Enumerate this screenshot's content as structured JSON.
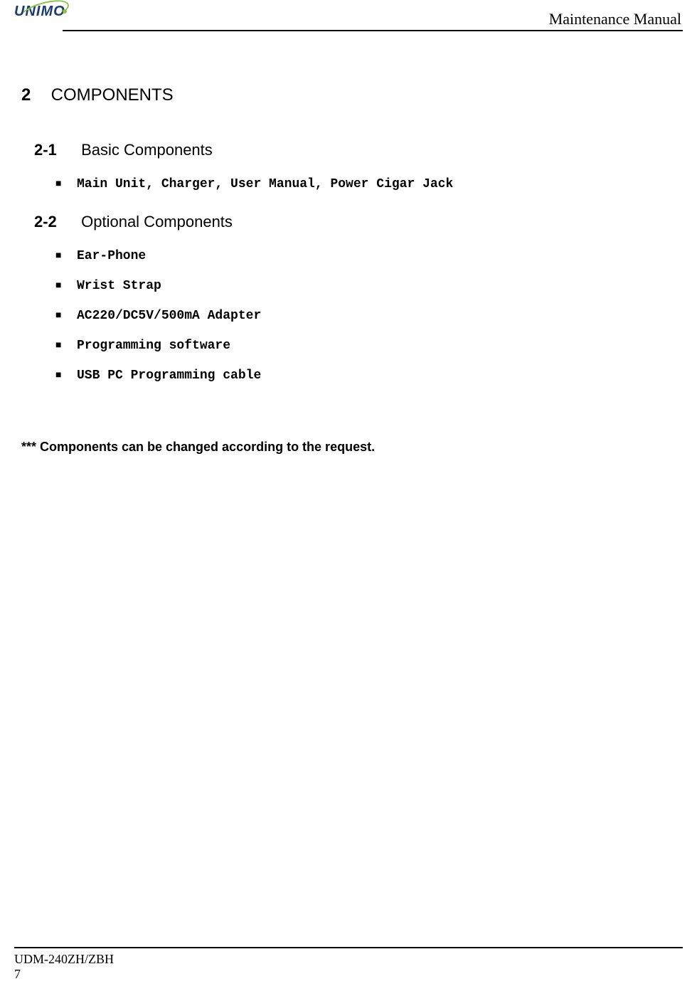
{
  "header": {
    "logo_text": "UNIMO",
    "title": "Maintenance Manual"
  },
  "content": {
    "section": {
      "number": "2",
      "title": "COMPONENTS"
    },
    "subsection1": {
      "number": "2-1",
      "title": "Basic Components",
      "items": [
        "Main Unit, Charger, User Manual, Power Cigar Jack"
      ]
    },
    "subsection2": {
      "number": "2-2",
      "title": "Optional Components",
      "items": [
        "Ear-Phone",
        "Wrist Strap",
        "AC220/DC5V/500mA Adapter",
        "Programming software",
        "USB PC Programming cable"
      ]
    },
    "note": "*** Components can be changed according to the request."
  },
  "footer": {
    "model": "UDM-240ZH/ZBH",
    "page": "7"
  },
  "colors": {
    "text": "#000000",
    "background": "#ffffff",
    "logo_blue": "#1a3d6d",
    "logo_green": "#8bc34a",
    "line": "#000000"
  },
  "typography": {
    "header_title_size": 22,
    "section_heading_size": 24,
    "subsection_heading_size": 22,
    "list_item_size": 18,
    "note_size": 18,
    "footer_size": 18
  }
}
